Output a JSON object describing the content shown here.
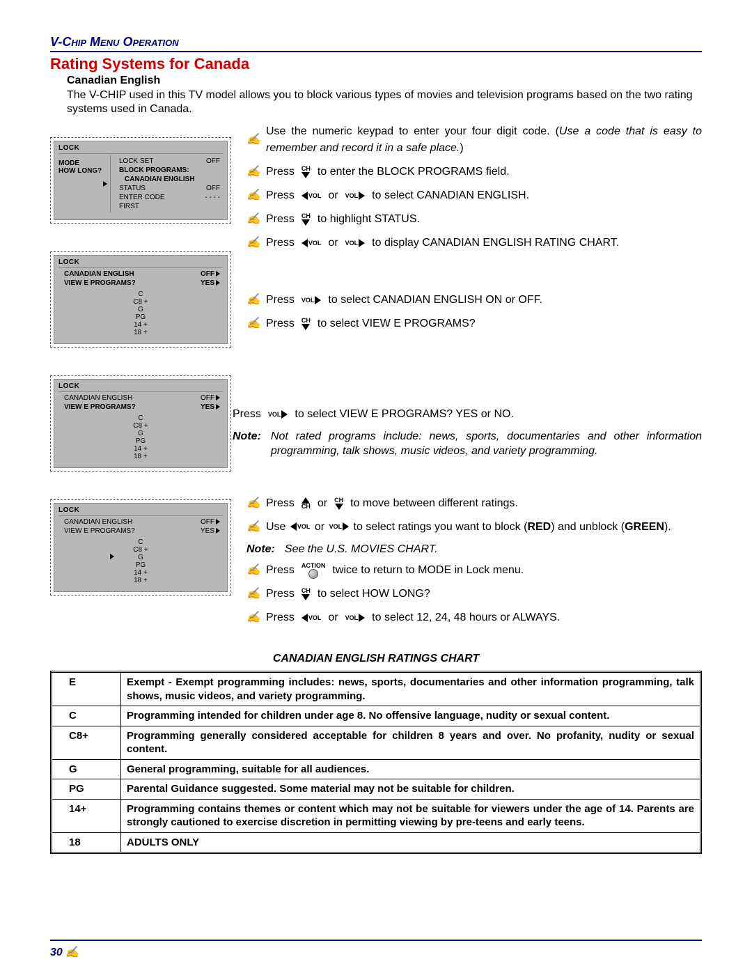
{
  "header": {
    "section": "V-Chip Menu Operation"
  },
  "title": "Rating Systems for Canada",
  "subtitle": "Canadian English",
  "intro": "The V-CHIP used in this TV model allows you to block various types of movies and television programs based on the two rating systems used in Canada.",
  "osd": {
    "lock": "LOCK",
    "panel1": {
      "left": [
        "MODE",
        "HOW LONG?"
      ],
      "right": [
        {
          "l": "LOCK SET",
          "r": "OFF"
        },
        {
          "l": "BLOCK PROGRAMS:",
          "r": ""
        },
        {
          "l": "   CANADIAN ENGLISH",
          "r": ""
        },
        {
          "l": "STATUS",
          "r": "OFF"
        },
        {
          "l": "ENTER CODE",
          "r": "- - - -"
        },
        {
          "l": "FIRST",
          "r": ""
        }
      ]
    },
    "panel2": {
      "rows": [
        {
          "l": "CANADIAN ENGLISH",
          "r": "OFF",
          "bold": true
        },
        {
          "l": "VIEW E PROGRAMS?",
          "r": "YES",
          "bold": true
        }
      ],
      "ratings": [
        "C",
        "C8 +",
        "G",
        "PG",
        "14 +",
        "18 +"
      ]
    },
    "panel3": {
      "rows": [
        {
          "l": "CANADIAN ENGLISH",
          "r": "OFF"
        },
        {
          "l": "VIEW E PROGRAMS?",
          "r": "YES",
          "bold": true
        }
      ],
      "ratings": [
        "C",
        "C8 +",
        "G",
        "PG",
        "14 +",
        "18 +"
      ]
    },
    "panel4": {
      "rows": [
        {
          "l": "CANADIAN ENGLISH",
          "r": "OFF"
        },
        {
          "l": "VIEW E PROGRAMS?",
          "r": "YES"
        }
      ],
      "ratings": [
        "C",
        "C8 +",
        "G",
        "PG",
        "14 +",
        "18 +"
      ],
      "cursor_index": 2
    }
  },
  "steps": {
    "s1_pre": "Use the numeric keypad to enter your four digit code. (",
    "s1_em": "Use a code that is easy to remember and record it in a safe place.",
    "s1_post": ")",
    "s2_pre": "Press",
    "s2_post": "to enter the BLOCK PROGRAMS field.",
    "s3_pre": "Press",
    "s3_mid": "or",
    "s3_post": "to select CANADIAN ENGLISH.",
    "s4_pre": "Press",
    "s4_post": "to highlight STATUS.",
    "s5_pre": "Press",
    "s5_mid": "or",
    "s5_post": "to display CANADIAN ENGLISH RATING CHART.",
    "s6_pre": "Press",
    "s6_post": "to select CANADIAN ENGLISH ON or OFF.",
    "s7_pre": "Press",
    "s7_post": "to select VIEW E PROGRAMS?",
    "s8_pre": "Press",
    "s8_post": "to select VIEW E PROGRAMS? YES or NO.",
    "note1_label": "Note:",
    "note1_text": "Not rated programs include: news, sports, documentaries and other information programming, talk shows, music videos, and variety programming.",
    "s9_pre": "Press",
    "s9_mid": "or",
    "s9_post": "to move between different ratings.",
    "s10_pre": "Use",
    "s10_mid": "or",
    "s10_post_a": "to select ratings you want to block (",
    "s10_red": "RED",
    "s10_post_b": ") and unblock (",
    "s10_green": "GREEN",
    "s10_post_c": ").",
    "note2_label": "Note:",
    "note2_text": "See the U.S. MOVIES CHART.",
    "s11_pre": "Press",
    "s11_post": "twice to return to MODE in Lock menu.",
    "s12_pre": "Press",
    "s12_post": "to select HOW LONG?",
    "s13_pre": "Press",
    "s13_mid": "or",
    "s13_post": "to select 12, 24, 48 hours or ALWAYS.",
    "ch": "CH",
    "vol": "VOL",
    "action": "ACTION"
  },
  "chart": {
    "title": "CANADIAN ENGLISH RATINGS CHART",
    "rows": [
      {
        "code": "E",
        "desc": "Exempt - Exempt programming includes: news, sports, documentaries and other information programming, talk shows, music videos, and variety programming."
      },
      {
        "code": "C",
        "desc": "Programming intended for children under age 8. No offensive language, nudity or sexual content."
      },
      {
        "code": "C8+",
        "desc": "Programming generally considered acceptable for children 8 years and over. No profanity, nudity or sexual content."
      },
      {
        "code": "G",
        "desc": "General programming, suitable for all audiences."
      },
      {
        "code": "PG",
        "desc": "Parental Guidance suggested. Some material may not be suitable for children."
      },
      {
        "code": "14+",
        "desc": "Programming contains themes or content which may not be suitable for viewers under the age of 14. Parents are strongly cautioned to exercise discretion in permitting viewing by pre-teens and early teens."
      },
      {
        "code": "18",
        "desc": "ADULTS ONLY"
      }
    ]
  },
  "page": "30"
}
